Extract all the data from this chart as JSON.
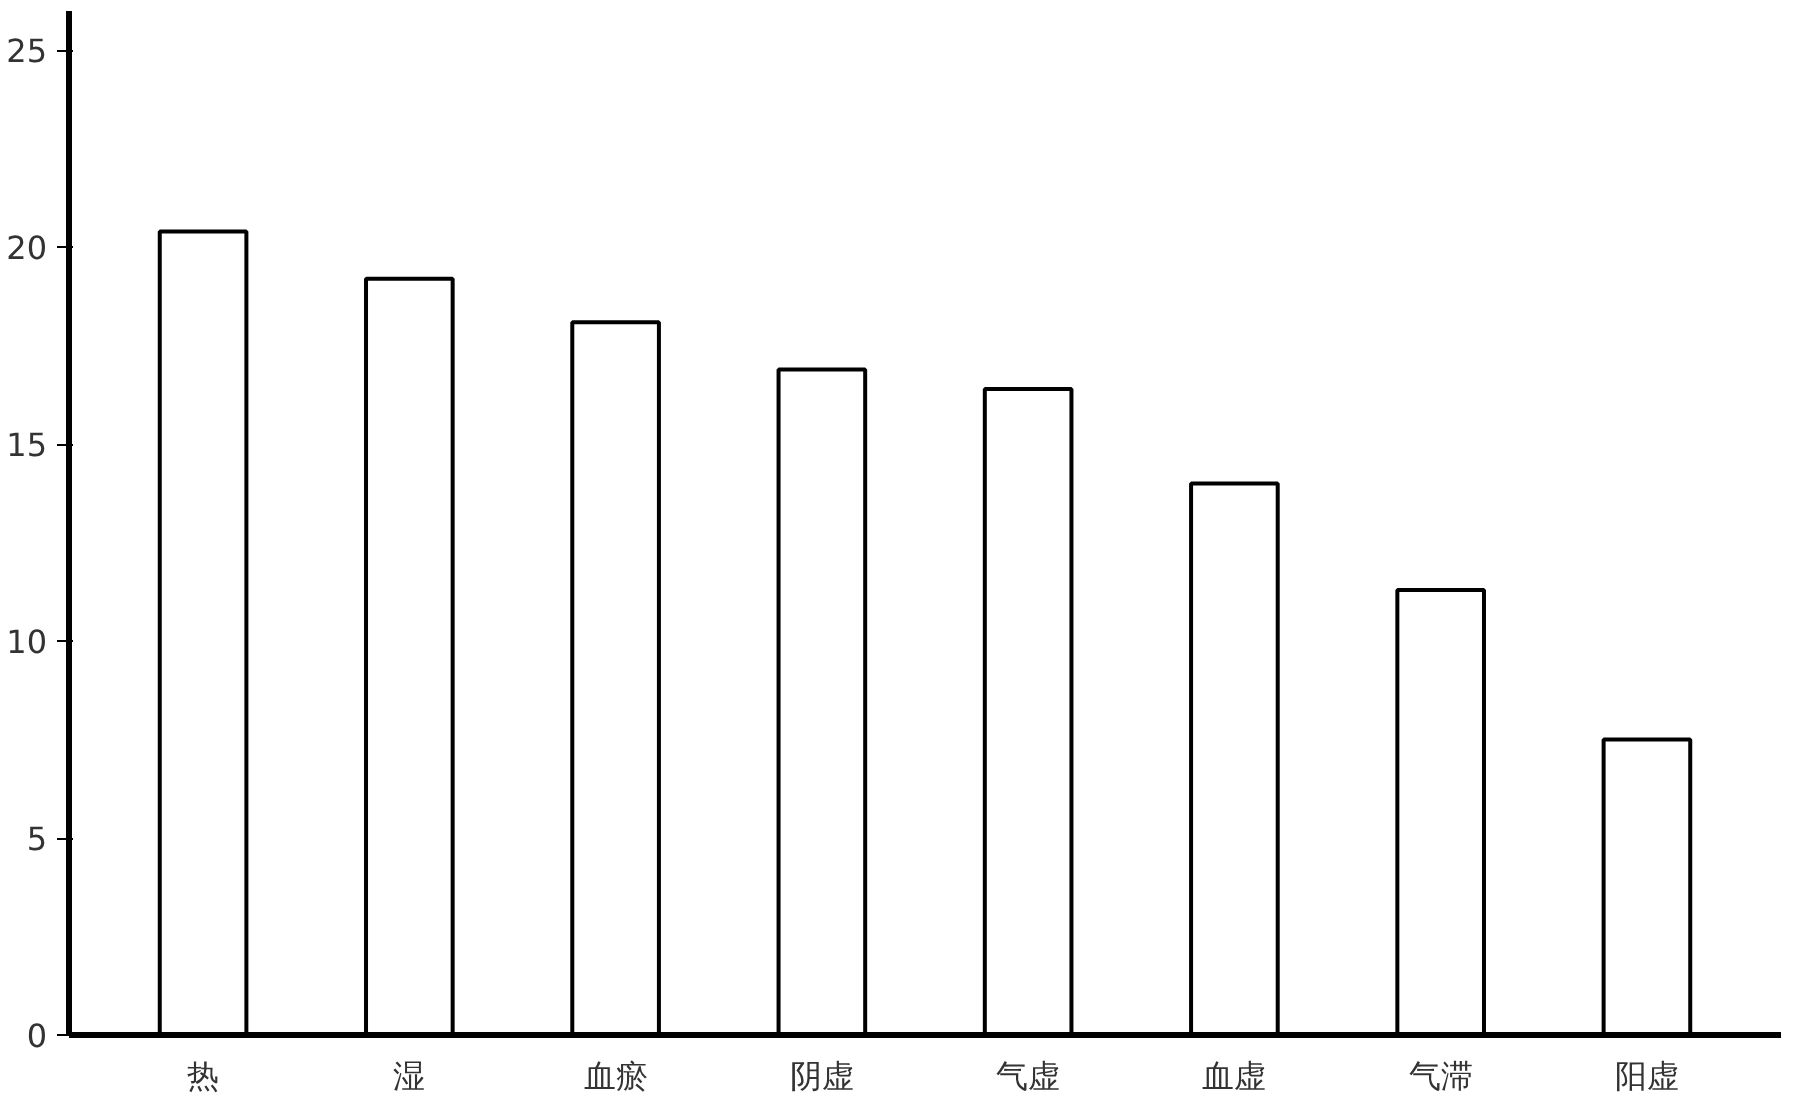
{
  "chart_data": {
    "type": "bar",
    "categories": [
      "热",
      "湿",
      "血瘀",
      "阴虚",
      "气虚",
      "血虚",
      "气滞",
      "阳虚"
    ],
    "values": [
      20.4,
      19.2,
      18.1,
      16.9,
      16.4,
      14.0,
      11.3,
      7.5
    ],
    "color": "#ffffff",
    "ylim": [
      0,
      26
    ],
    "yticks": [
      0,
      5,
      10,
      15,
      20,
      25
    ],
    "grid": false
  }
}
